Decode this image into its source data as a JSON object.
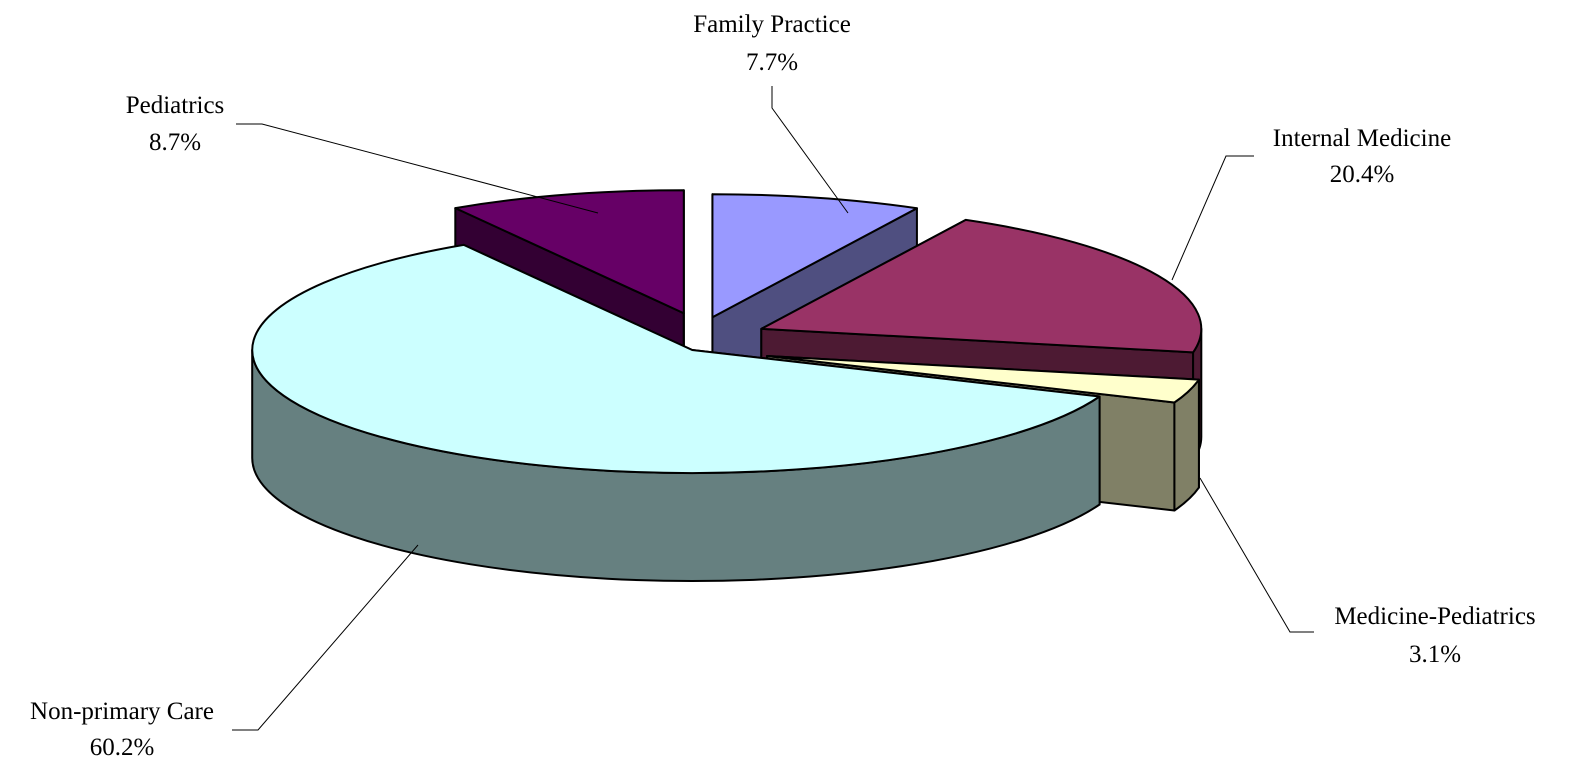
{
  "chart_data": {
    "type": "pie",
    "style": "3d-exploded",
    "title": "",
    "slices": [
      {
        "name": "Family Practice",
        "value": 7.7,
        "label": "7.7%",
        "top_color": "#9999ff",
        "side_color": "#4f4f80"
      },
      {
        "name": "Internal Medicine",
        "value": 20.4,
        "label": "20.4%",
        "top_color": "#993366",
        "side_color": "#4d1a33"
      },
      {
        "name": "Medicine-Pediatrics",
        "value": 3.1,
        "label": "3.1%",
        "top_color": "#ffffcc",
        "side_color": "#808066"
      },
      {
        "name": "Non-primary Care",
        "value": 60.2,
        "label": "60.2%",
        "top_color": "#ccffff",
        "side_color": "#668080"
      },
      {
        "name": "Pediatrics",
        "value": 8.7,
        "label": "8.7%",
        "top_color": "#660066",
        "side_color": "#330033"
      }
    ]
  }
}
